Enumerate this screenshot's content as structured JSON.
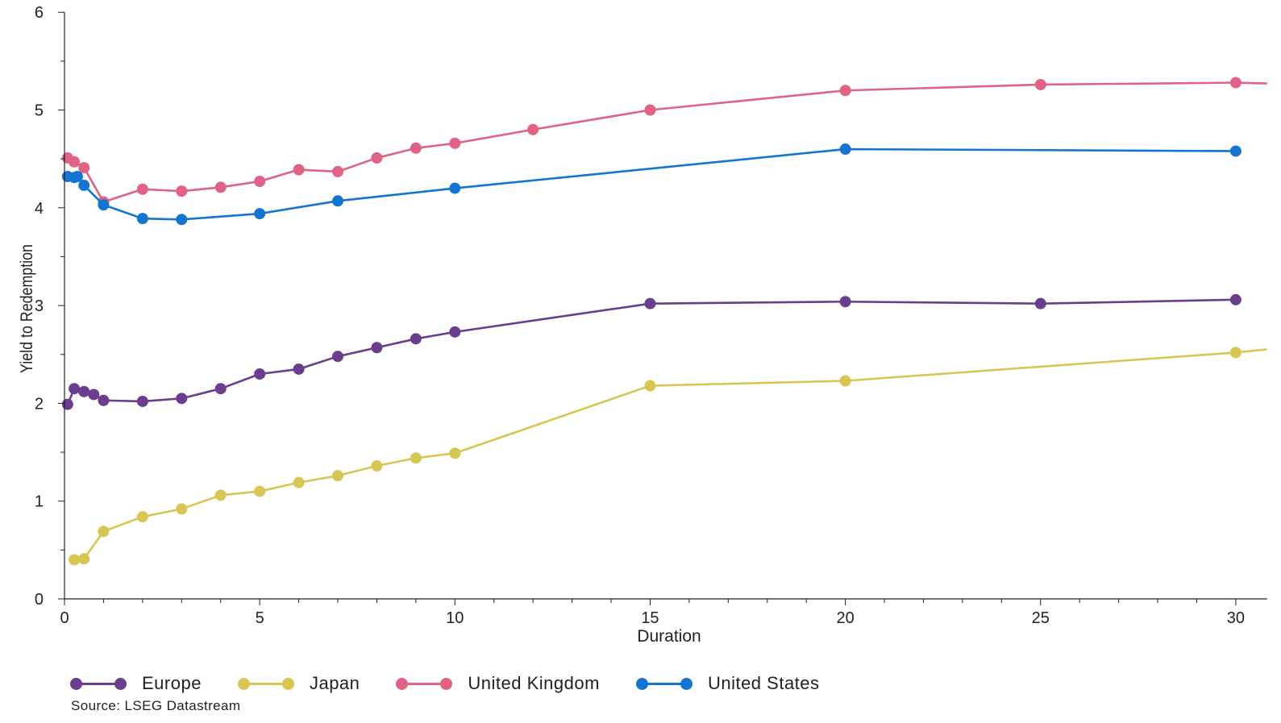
{
  "chart_data": {
    "type": "line",
    "xlabel": "Duration",
    "ylabel": "Yield to Redemption",
    "xlim": [
      0,
      30.8
    ],
    "ylim": [
      0,
      6
    ],
    "x_ticks": [
      0,
      5,
      10,
      15,
      20,
      25,
      30
    ],
    "y_ticks": [
      0,
      1,
      2,
      3,
      4,
      5,
      6
    ],
    "grid": false,
    "legend_position": "bottom",
    "series": [
      {
        "name": "Europe",
        "color": "#6a3d8f",
        "points": [
          [
            0.08,
            1.99
          ],
          [
            0.25,
            2.15
          ],
          [
            0.5,
            2.12
          ],
          [
            0.75,
            2.09
          ],
          [
            1,
            2.03
          ],
          [
            2,
            2.02
          ],
          [
            3,
            2.05
          ],
          [
            4,
            2.15
          ],
          [
            5,
            2.3
          ],
          [
            6,
            2.35
          ],
          [
            7,
            2.48
          ],
          [
            8,
            2.57
          ],
          [
            9,
            2.66
          ],
          [
            10,
            2.73
          ],
          [
            15,
            3.02
          ],
          [
            20,
            3.04
          ],
          [
            25,
            3.02
          ],
          [
            30,
            3.06
          ]
        ]
      },
      {
        "name": "Japan",
        "color": "#d8c654",
        "points": [
          [
            0.25,
            0.4
          ],
          [
            0.5,
            0.41
          ],
          [
            1,
            0.69
          ],
          [
            2,
            0.84
          ],
          [
            3,
            0.92
          ],
          [
            4,
            1.06
          ],
          [
            5,
            1.1
          ],
          [
            6,
            1.19
          ],
          [
            7,
            1.26
          ],
          [
            8,
            1.36
          ],
          [
            9,
            1.44
          ],
          [
            10,
            1.49
          ],
          [
            15,
            2.18
          ],
          [
            20,
            2.23
          ],
          [
            30,
            2.52
          ],
          [
            31,
            2.56
          ]
        ]
      },
      {
        "name": "United Kingdom",
        "color": "#e06285",
        "points": [
          [
            0.08,
            4.51
          ],
          [
            0.25,
            4.47
          ],
          [
            0.5,
            4.41
          ],
          [
            1,
            4.06
          ],
          [
            2,
            4.19
          ],
          [
            3,
            4.17
          ],
          [
            4,
            4.21
          ],
          [
            5,
            4.27
          ],
          [
            6,
            4.39
          ],
          [
            7,
            4.37
          ],
          [
            8,
            4.51
          ],
          [
            9,
            4.61
          ],
          [
            10,
            4.66
          ],
          [
            12,
            4.8
          ],
          [
            15,
            5.0
          ],
          [
            20,
            5.2
          ],
          [
            25,
            5.26
          ],
          [
            30,
            5.28
          ],
          [
            31,
            5.27
          ]
        ]
      },
      {
        "name": "United States",
        "color": "#1574d0",
        "points": [
          [
            0.08,
            4.32
          ],
          [
            0.25,
            4.31
          ],
          [
            0.33,
            4.32
          ],
          [
            0.5,
            4.23
          ],
          [
            1,
            4.03
          ],
          [
            2,
            3.89
          ],
          [
            3,
            3.88
          ],
          [
            5,
            3.94
          ],
          [
            7,
            4.07
          ],
          [
            10,
            4.2
          ],
          [
            20,
            4.6
          ],
          [
            30,
            4.58
          ]
        ]
      }
    ]
  },
  "legend": {
    "items": [
      {
        "label": "Europe",
        "color": "#6a3d8f"
      },
      {
        "label": "Japan",
        "color": "#d8c654"
      },
      {
        "label": "United Kingdom",
        "color": "#e06285"
      },
      {
        "label": "United States",
        "color": "#1574d0"
      }
    ]
  },
  "source": "Source: LSEG Datastream"
}
